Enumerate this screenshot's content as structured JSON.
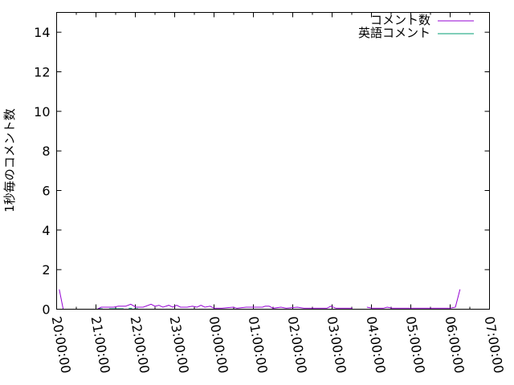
{
  "chart_data": {
    "type": "line",
    "title": "",
    "xlabel": "",
    "ylabel": "1秒毎のコメント数",
    "xlim": [
      "20:00:00",
      "07:00:00"
    ],
    "ylim": [
      0,
      15
    ],
    "yticks": [
      "0",
      "2",
      "4",
      "6",
      "8",
      "10",
      "12",
      "14"
    ],
    "xticks": [
      "20:00:00",
      "21:00:00",
      "22:00:00",
      "23:00:00",
      "00:00:00",
      "01:00:00",
      "02:00:00",
      "03:00:00",
      "04:00:00",
      "05:00:00",
      "06:00:00",
      "07:00:00"
    ],
    "grid": false,
    "legend_position": "top-right",
    "series": [
      {
        "name": "コメント数",
        "color": "#9400d3",
        "segments": [
          [
            [
              "20:04",
              1.0
            ],
            [
              "20:10",
              0
            ]
          ],
          [
            [
              "21:02",
              0
            ],
            [
              "21:08",
              0.1
            ],
            [
              "21:27",
              0.1
            ],
            [
              "21:34",
              0.15
            ],
            [
              "21:45",
              0.15
            ],
            [
              "21:53",
              0.25
            ],
            [
              "22:01",
              0.1
            ],
            [
              "22:12",
              0.1
            ],
            [
              "22:24",
              0.25
            ],
            [
              "22:30",
              0.15
            ],
            [
              "22:36",
              0.2
            ],
            [
              "22:42",
              0.1
            ],
            [
              "22:51",
              0.2
            ],
            [
              "22:57",
              0.1
            ],
            [
              "23:03",
              0.2
            ],
            [
              "23:09",
              0.1
            ],
            [
              "23:19",
              0.1
            ],
            [
              "23:27",
              0.15
            ],
            [
              "23:34",
              0.1
            ],
            [
              "23:40",
              0.2
            ],
            [
              "23:46",
              0.1
            ],
            [
              "23:54",
              0.15
            ],
            [
              "00:00",
              0.05
            ],
            [
              "00:12",
              0.05
            ],
            [
              "00:29",
              0.1
            ],
            [
              "00:35",
              0.05
            ],
            [
              "00:49",
              0.1
            ],
            [
              "01:01",
              0.1
            ],
            [
              "01:14",
              0.1
            ],
            [
              "01:18",
              0.15
            ],
            [
              "01:24",
              0.15
            ],
            [
              "01:30",
              0.05
            ],
            [
              "01:42",
              0.1
            ],
            [
              "01:50",
              0.05
            ],
            [
              "02:07",
              0.1
            ],
            [
              "02:17",
              0.05
            ],
            [
              "02:31",
              0.05
            ],
            [
              "02:52",
              0.05
            ],
            [
              "02:58",
              0.15
            ],
            [
              "03:06",
              0.05
            ],
            [
              "03:31",
              0.05
            ]
          ],
          [
            [
              "03:38",
              0
            ],
            [
              "03:50",
              0.0
            ]
          ],
          [
            [
              "03:53",
              0.1
            ],
            [
              "04:01",
              0.05
            ],
            [
              "04:18",
              0.05
            ],
            [
              "04:24",
              0.1
            ],
            [
              "04:32",
              0.05
            ],
            [
              "04:50",
              0.05
            ],
            [
              "05:01",
              0.05
            ],
            [
              "05:15",
              0.05
            ],
            [
              "05:31",
              0.05
            ],
            [
              "06:00",
              0.05
            ],
            [
              "06:08",
              0.1
            ],
            [
              "06:15",
              1.0
            ]
          ]
        ]
      },
      {
        "name": "英語コメント",
        "color": "#009e73",
        "segments": [
          [
            [
              "21:04",
              0.02
            ],
            [
              "21:10",
              0.02
            ]
          ],
          [
            [
              "21:20",
              0.02
            ],
            [
              "21:42",
              0.02
            ]
          ],
          [
            [
              "21:50",
              0.05
            ],
            [
              "21:55",
              0.05
            ]
          ],
          [
            [
              "21:58",
              0.02
            ],
            [
              "22:04",
              0.02
            ]
          ]
        ]
      }
    ]
  }
}
